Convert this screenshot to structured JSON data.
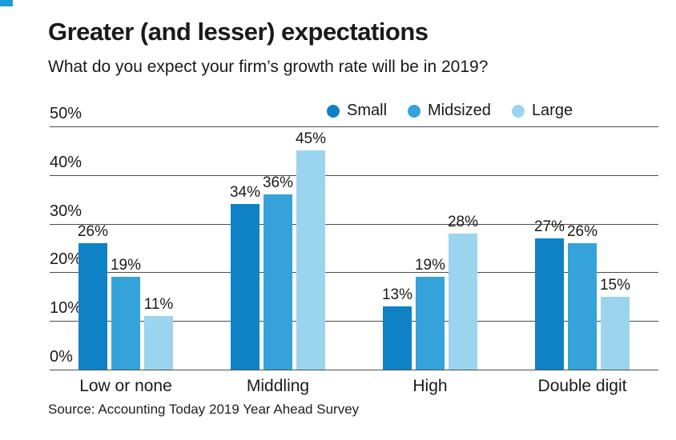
{
  "header": {
    "title": "Greater (and lesser) expectations",
    "subtitle": "What do you expect your firm’s growth rate will be in 2019?"
  },
  "source": "Source: Accounting Today 2019 Year Ahead Survey",
  "colors": {
    "accent": "#1b9cd9",
    "small": "#0e82c4",
    "midsized": "#35a3da",
    "large": "#9bd4ef",
    "grid": "#4d4d4d",
    "text": "#1a1a1a"
  },
  "chart_data": {
    "type": "bar",
    "title": "Greater (and lesser) expectations",
    "subtitle": "What do you expect your firm’s growth rate will be in 2019?",
    "categories": [
      "Low or none",
      "Middling",
      "High",
      "Double digit"
    ],
    "series": [
      {
        "name": "Small",
        "color": "#0e82c4",
        "values": [
          26,
          34,
          13,
          27
        ]
      },
      {
        "name": "Midsized",
        "color": "#35a3da",
        "values": [
          19,
          36,
          19,
          26
        ]
      },
      {
        "name": "Large",
        "color": "#9bd4ef",
        "values": [
          11,
          45,
          28,
          15
        ]
      }
    ],
    "xlabel": "",
    "ylabel": "",
    "ylim": [
      0,
      50
    ],
    "ytick_step": 10,
    "ytick_labels": [
      "0%",
      "10%",
      "20%",
      "30%",
      "40%",
      "50%"
    ],
    "value_label_suffix": "%",
    "grid": true,
    "legend_position": "top-right"
  }
}
